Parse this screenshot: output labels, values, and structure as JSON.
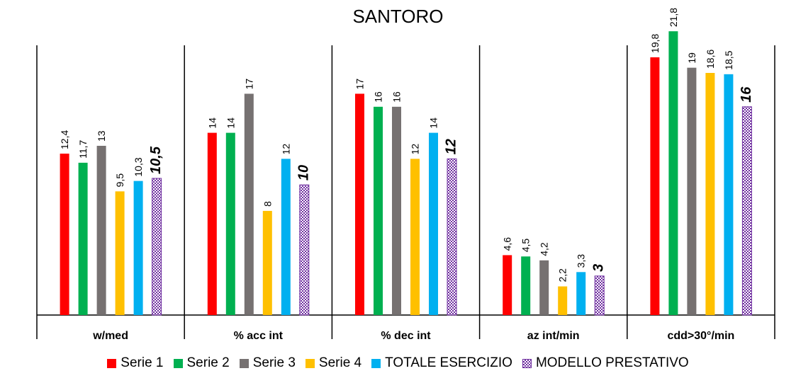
{
  "chart_data": {
    "type": "bar",
    "title": "SANTORO",
    "categories": [
      "w/med",
      "% acc int",
      "% dec int",
      "az int/min",
      "cdd>30°/min"
    ],
    "series": [
      {
        "name": "Serie 1",
        "color": "#ff0000",
        "values": [
          12.4,
          14,
          17,
          4.6,
          19.8
        ],
        "labels": [
          "12,4",
          "14",
          "17",
          "4,6",
          "19,8"
        ]
      },
      {
        "name": "Serie 2",
        "color": "#00b050",
        "values": [
          11.7,
          14,
          16,
          4.5,
          21.8
        ],
        "labels": [
          "11,7",
          "14",
          "16",
          "4,5",
          "21,8"
        ]
      },
      {
        "name": "Serie 3",
        "color": "#767171",
        "values": [
          13,
          17,
          16,
          4.2,
          19
        ],
        "labels": [
          "13",
          "17",
          "16",
          "4,2",
          "19"
        ]
      },
      {
        "name": "Serie 4",
        "color": "#ffc000",
        "values": [
          9.5,
          8,
          12,
          2.2,
          18.6
        ],
        "labels": [
          "9,5",
          "8",
          "12",
          "2,2",
          "18,6"
        ]
      },
      {
        "name": "TOTALE ESERCIZIO",
        "color": "#00b0f0",
        "values": [
          10.3,
          12,
          14,
          3.3,
          18.5
        ],
        "labels": [
          "10,3",
          "12",
          "14",
          "3,3",
          "18,5"
        ]
      },
      {
        "name": "MODELLO PRESTATIVO",
        "color": "#7030a0",
        "pattern": "checkered",
        "values": [
          10.5,
          10,
          12,
          3,
          16
        ],
        "labels": [
          "10,5",
          "10",
          "12",
          "3",
          "16"
        ]
      }
    ],
    "ylim": [
      0,
      25
    ],
    "grid": false,
    "legend_position": "bottom"
  }
}
